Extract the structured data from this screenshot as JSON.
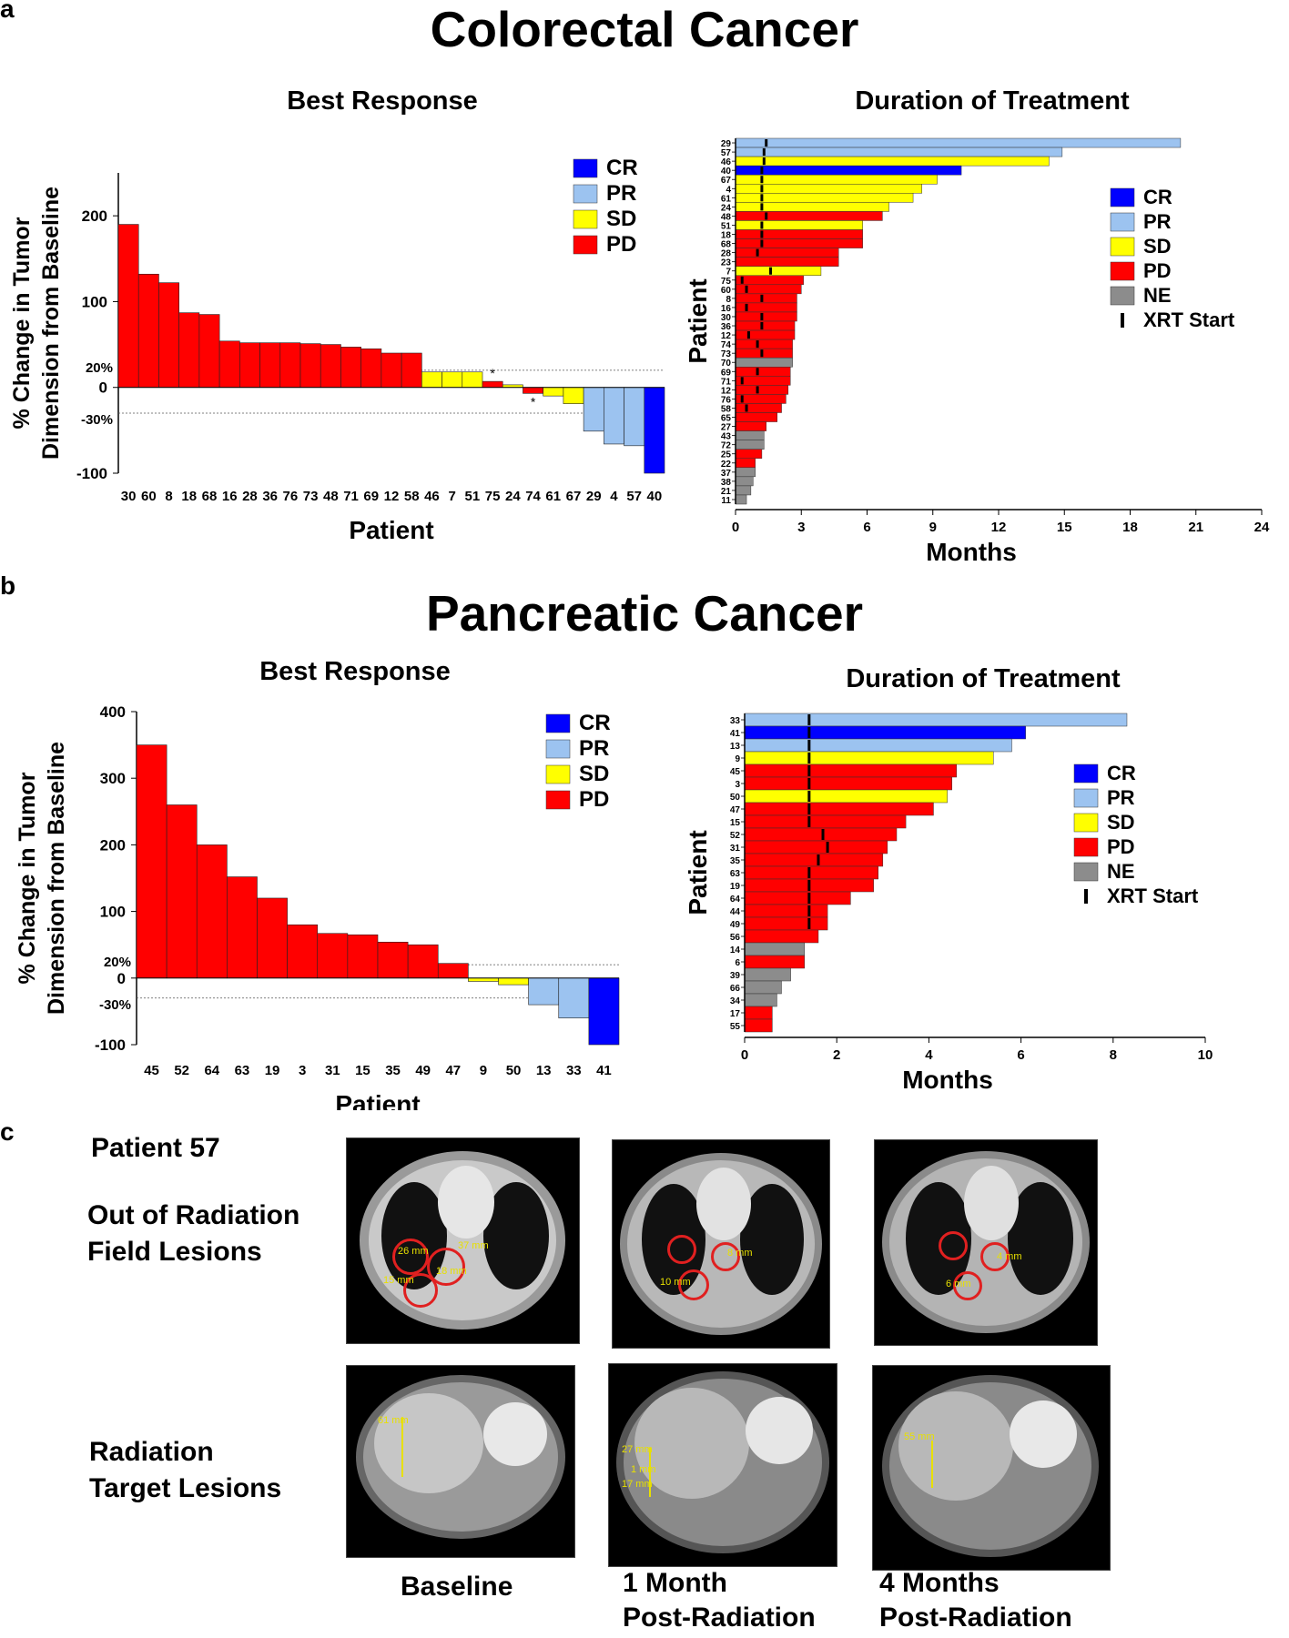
{
  "panels": {
    "a": "a",
    "b": "b",
    "c": "c"
  },
  "colors": {
    "CR": "#0000ff",
    "PR": "#9cc3f0",
    "SD": "#ffff00",
    "PD": "#ff0000",
    "NE": "#8c8c8c",
    "XRT": "#000000"
  },
  "crc": {
    "title": "Colorectal Cancer",
    "best_title": "Best Response",
    "duration_title": "Duration of Treatment"
  },
  "panc": {
    "title": "Pancreatic Cancer",
    "best_title": "Best Response",
    "duration_title": "Duration of Treatment"
  },
  "chart_data": [
    {
      "type": "bar",
      "id": "crc-waterfall",
      "title": "Best Response",
      "xlabel": "Patient",
      "ylabel": "% Change in Tumor Dimension from Baseline",
      "yticks": [
        "200",
        "100",
        "0",
        "-100"
      ],
      "ytick_values": [
        200,
        100,
        0,
        -100
      ],
      "ref_lines": [
        {
          "value": 20,
          "label": "20%"
        },
        {
          "value": -30,
          "label": "-30%"
        }
      ],
      "ylim": [
        -100,
        250
      ],
      "legend": [
        "CR",
        "PR",
        "SD",
        "PD"
      ],
      "categories": [
        "30",
        "60",
        "8",
        "18",
        "68",
        "16",
        "28",
        "36",
        "76",
        "73",
        "48",
        "71",
        "69",
        "12",
        "58",
        "46",
        "7",
        "51",
        "75",
        "24",
        "74",
        "61",
        "67",
        "29",
        "4",
        "57",
        "40"
      ],
      "values": [
        190,
        132,
        122,
        87,
        85,
        54,
        52,
        52,
        52,
        51,
        50,
        47,
        45,
        40,
        40,
        18,
        18,
        18,
        7,
        3,
        -7,
        -10,
        -19,
        -51,
        -66,
        -68,
        -100
      ],
      "responses": [
        "PD",
        "PD",
        "PD",
        "PD",
        "PD",
        "PD",
        "PD",
        "PD",
        "PD",
        "PD",
        "PD",
        "PD",
        "PD",
        "PD",
        "PD",
        "SD",
        "SD",
        "SD",
        "PD",
        "SD",
        "PD",
        "SD",
        "SD",
        "PR",
        "PR",
        "PR",
        "CR"
      ],
      "annotations": [
        {
          "category": "75",
          "text": "*"
        },
        {
          "category": "74",
          "text": "*"
        }
      ]
    },
    {
      "type": "bar",
      "id": "crc-duration",
      "orientation": "horizontal",
      "title": "Duration of Treatment",
      "xlabel": "Months",
      "ylabel": "Patient",
      "xlim": [
        0,
        24
      ],
      "xticks": [
        "0",
        "3",
        "6",
        "9",
        "12",
        "15",
        "18",
        "21",
        "24"
      ],
      "xtick_values": [
        0,
        3,
        6,
        9,
        12,
        15,
        18,
        21,
        24
      ],
      "legend": [
        "CR",
        "PR",
        "SD",
        "PD",
        "NE",
        "XRT Start"
      ],
      "patients": [
        "29",
        "57",
        "46",
        "40",
        "67",
        "4",
        "61",
        "24",
        "48",
        "51",
        "18",
        "68",
        "28",
        "23",
        "7",
        "75",
        "60",
        "8",
        "16",
        "30",
        "36",
        "12",
        "74",
        "73",
        "70",
        "69",
        "71",
        "12",
        "76",
        "58",
        "65",
        "27",
        "43",
        "72",
        "25",
        "22",
        "37",
        "38",
        "21",
        "11"
      ],
      "months": [
        20.3,
        14.9,
        14.3,
        10.3,
        9.2,
        8.5,
        8.1,
        7.0,
        6.7,
        5.8,
        5.8,
        5.8,
        4.7,
        4.7,
        3.9,
        3.1,
        3.0,
        2.8,
        2.8,
        2.8,
        2.7,
        2.7,
        2.6,
        2.6,
        2.6,
        2.5,
        2.5,
        2.4,
        2.3,
        2.1,
        1.9,
        1.4,
        1.3,
        1.3,
        1.2,
        0.9,
        0.9,
        0.8,
        0.7,
        0.5
      ],
      "responses": [
        "PR",
        "PR",
        "SD",
        "CR",
        "SD",
        "SD",
        "SD",
        "SD",
        "PD",
        "SD",
        "PD",
        "PD",
        "PD",
        "PD",
        "SD",
        "PD",
        "PD",
        "PD",
        "PD",
        "PD",
        "PD",
        "PD",
        "PD",
        "PD",
        "NE",
        "PD",
        "PD",
        "PD",
        "PD",
        "PD",
        "PD",
        "PD",
        "NE",
        "NE",
        "PD",
        "PD",
        "NE",
        "NE",
        "NE",
        "NE"
      ],
      "xrt_start": [
        1.4,
        1.3,
        1.3,
        1.2,
        1.2,
        1.2,
        1.2,
        1.2,
        1.4,
        1.2,
        1.2,
        1.2,
        1.0,
        null,
        1.6,
        0.3,
        0.5,
        1.2,
        0.5,
        1.2,
        1.2,
        0.6,
        1.0,
        1.2,
        null,
        1.0,
        0.3,
        1.0,
        0.3,
        0.5,
        null,
        null,
        null,
        null,
        null,
        null,
        null,
        null,
        null,
        null
      ]
    },
    {
      "type": "bar",
      "id": "panc-waterfall",
      "title": "Best Response",
      "xlabel": "Patient",
      "ylabel": "% Change in Tumor Dimension from Baseline",
      "yticks": [
        "400",
        "300",
        "200",
        "100",
        "0",
        "-100"
      ],
      "ytick_values": [
        400,
        300,
        200,
        100,
        0,
        -100
      ],
      "ref_lines": [
        {
          "value": 20,
          "label": "20%"
        },
        {
          "value": -30,
          "label": "-30%"
        }
      ],
      "ylim": [
        -100,
        400
      ],
      "legend": [
        "CR",
        "PR",
        "SD",
        "PD"
      ],
      "categories": [
        "45",
        "52",
        "64",
        "63",
        "19",
        "3",
        "31",
        "15",
        "35",
        "49",
        "47",
        "9",
        "50",
        "13",
        "33",
        "41"
      ],
      "values": [
        350,
        260,
        200,
        152,
        120,
        80,
        67,
        65,
        54,
        50,
        22,
        -5,
        -10,
        -40,
        -60,
        -100
      ],
      "responses": [
        "PD",
        "PD",
        "PD",
        "PD",
        "PD",
        "PD",
        "PD",
        "PD",
        "PD",
        "PD",
        "PD",
        "SD",
        "SD",
        "PR",
        "PR",
        "CR"
      ]
    },
    {
      "type": "bar",
      "id": "panc-duration",
      "orientation": "horizontal",
      "title": "Duration of Treatment",
      "xlabel": "Months",
      "ylabel": "Patient",
      "xlim": [
        0,
        10
      ],
      "xticks": [
        "0",
        "2",
        "4",
        "6",
        "8",
        "10"
      ],
      "xtick_values": [
        0,
        2,
        4,
        6,
        8,
        10
      ],
      "legend": [
        "CR",
        "PR",
        "SD",
        "PD",
        "NE",
        "XRT Start"
      ],
      "patients": [
        "33",
        "41",
        "13",
        "9",
        "45",
        "3",
        "50",
        "47",
        "15",
        "52",
        "31",
        "35",
        "63",
        "19",
        "64",
        "44",
        "49",
        "56",
        "14",
        "6",
        "39",
        "66",
        "34",
        "17",
        "55"
      ],
      "months": [
        8.3,
        6.1,
        5.8,
        5.4,
        4.6,
        4.5,
        4.4,
        4.1,
        3.5,
        3.3,
        3.1,
        3.0,
        2.9,
        2.8,
        2.3,
        1.8,
        1.8,
        1.6,
        1.3,
        1.3,
        1.0,
        0.8,
        0.7,
        0.6,
        0.6
      ],
      "responses": [
        "PR",
        "CR",
        "PR",
        "SD",
        "PD",
        "PD",
        "SD",
        "PD",
        "PD",
        "PD",
        "PD",
        "PD",
        "PD",
        "PD",
        "PD",
        "PD",
        "PD",
        "PD",
        "NE",
        "PD",
        "NE",
        "NE",
        "NE",
        "PD",
        "PD"
      ],
      "xrt_start": [
        1.4,
        1.4,
        1.4,
        1.4,
        1.4,
        1.4,
        1.4,
        1.4,
        1.4,
        1.7,
        1.8,
        1.6,
        1.4,
        1.4,
        1.4,
        1.4,
        1.4,
        null,
        null,
        null,
        null,
        null,
        null,
        null,
        null
      ]
    }
  ],
  "panel_c": {
    "patient": "Patient 57",
    "row1_label_l1": "Out of Radiation",
    "row1_label_l2": "Field Lesions",
    "row2_label_l1": "Radiation",
    "row2_label_l2": "Target Lesions",
    "col1": "Baseline",
    "col2_l1": "1 Month",
    "col2_l2": "Post-Radiation",
    "col3_l1": "4 Months",
    "col3_l2": "Post-Radiation",
    "scan1_measures": [
      "26 mm",
      "37 mm",
      "15 mm",
      "18 mm"
    ],
    "scan2_measures": [
      "10 mm",
      "8 mm"
    ],
    "scan3_measures": [
      "6 mm",
      "4 mm"
    ],
    "scan4_measures": [
      "61 mm"
    ],
    "scan5_measures": [
      "27 mm",
      "1 mm",
      "17 mm"
    ],
    "scan6_measures": [
      "55 mm"
    ]
  }
}
